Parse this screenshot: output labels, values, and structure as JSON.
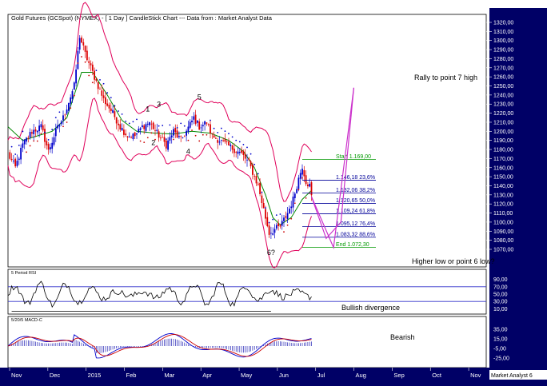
{
  "chart_data": {
    "type": "candlestick",
    "title": "Gold Futures (GCSpot) (NYMEX) - [ 1 Day ] CandleStick Chart --- Data from : Market Analyst Data",
    "watermark": "Market Analyst 6",
    "x_months": [
      "Nov",
      "Dec",
      "2015",
      "Feb",
      "Mar",
      "Apr",
      "May",
      "Jun",
      "Jul",
      "Aug",
      "Sep",
      "Oct",
      "Nov"
    ],
    "price_panel": {
      "y_min": 1070,
      "y_max": 1320,
      "tick_step": 10,
      "tick_labels": [
        "1320,00",
        "1310,00",
        "1300,00",
        "1290,00",
        "1280,00",
        "1270,00",
        "1260,00",
        "1250,00",
        "1240,00",
        "1230,00",
        "1220,00",
        "1210,00",
        "1200,00",
        "1190,00",
        "1180,00",
        "1170,00",
        "1160,00",
        "1150,00",
        "1140,00",
        "1130,00",
        "1120,00",
        "1110,00",
        "1100,00",
        "1090,00",
        "1080,00",
        "1070,00"
      ],
      "price_path": [
        [
          0,
          1175
        ],
        [
          4,
          1160
        ],
        [
          8,
          1185
        ],
        [
          13,
          1200
        ],
        [
          18,
          1205
        ],
        [
          22,
          1178
        ],
        [
          26,
          1200
        ],
        [
          30,
          1215
        ],
        [
          36,
          1250
        ],
        [
          39,
          1305
        ],
        [
          42,
          1285
        ],
        [
          47,
          1260
        ],
        [
          52,
          1235
        ],
        [
          57,
          1220
        ],
        [
          61,
          1205
        ],
        [
          65,
          1195
        ],
        [
          69,
          1195
        ],
        [
          73,
          1205
        ],
        [
          77,
          1210
        ],
        [
          81,
          1198
        ],
        [
          86,
          1185
        ],
        [
          90,
          1200
        ],
        [
          94,
          1190
        ],
        [
          97,
          1200
        ],
        [
          101,
          1215
        ],
        [
          104,
          1205
        ],
        [
          108,
          1210
        ],
        [
          111,
          1195
        ],
        [
          115,
          1190
        ],
        [
          119,
          1185
        ],
        [
          123,
          1180
        ],
        [
          127,
          1175
        ],
        [
          131,
          1165
        ],
        [
          136,
          1140
        ],
        [
          140,
          1105
        ],
        [
          142,
          1088
        ],
        [
          145,
          1092
        ],
        [
          148,
          1095
        ],
        [
          152,
          1110
        ],
        [
          155,
          1125
        ],
        [
          158,
          1148
        ],
        [
          160,
          1162
        ],
        [
          162,
          1145
        ],
        [
          164,
          1140
        ],
        [
          165,
          1128
        ]
      ],
      "moving_average_path": [
        [
          0,
          1205
        ],
        [
          8,
          1190
        ],
        [
          16,
          1195
        ],
        [
          24,
          1200
        ],
        [
          32,
          1215
        ],
        [
          40,
          1265
        ],
        [
          46,
          1265
        ],
        [
          54,
          1240
        ],
        [
          62,
          1212
        ],
        [
          70,
          1200
        ],
        [
          80,
          1198
        ],
        [
          90,
          1197
        ],
        [
          100,
          1200
        ],
        [
          110,
          1198
        ],
        [
          120,
          1190
        ],
        [
          128,
          1178
        ],
        [
          134,
          1160
        ],
        [
          140,
          1130
        ],
        [
          144,
          1105
        ],
        [
          148,
          1097
        ],
        [
          154,
          1105
        ],
        [
          160,
          1125
        ],
        [
          165,
          1135
        ]
      ],
      "wave_labels": [
        {
          "text": "1",
          "day": 76,
          "price": 1222
        },
        {
          "text": "2",
          "day": 79,
          "price": 1185
        },
        {
          "text": "3",
          "day": 82,
          "price": 1227
        },
        {
          "text": "4",
          "day": 98,
          "price": 1175
        },
        {
          "text": "5",
          "day": 104,
          "price": 1235
        },
        {
          "text": "6?",
          "day": 143,
          "price": 1064
        }
      ],
      "fib_levels": [
        {
          "label": "Start 1.169,00",
          "value": 1169.0,
          "color": "#009900"
        },
        {
          "label": "1.146,18 23,6%",
          "value": 1146.18,
          "color": "#000099"
        },
        {
          "label": "1.132,06 38,2%",
          "value": 1132.06,
          "color": "#000099"
        },
        {
          "label": "1.120,65 50,0%",
          "value": 1120.65,
          "color": "#000099"
        },
        {
          "label": "1.109,24 61,8%",
          "value": 1109.24,
          "color": "#000099"
        },
        {
          "label": "1.095,12 76,4%",
          "value": 1095.12,
          "color": "#000099"
        },
        {
          "label": "1.083,32 88,6%",
          "value": 1083.32,
          "color": "#000099"
        },
        {
          "label": "End 1.072,30",
          "value": 1072.3,
          "color": "#009900"
        }
      ],
      "projection_path": [
        [
          165,
          1128
        ],
        [
          177,
          1072
        ],
        [
          188,
          1248
        ]
      ],
      "projection_alt_path": [
        [
          165,
          1128
        ],
        [
          173,
          1082
        ],
        [
          181,
          1100
        ],
        [
          188,
          1248
        ]
      ],
      "annotations": [
        {
          "text": "Rally to point 7 high"
        },
        {
          "text": "Higher low or point 6 low?"
        }
      ]
    },
    "rsi_panel": {
      "name": "5 Period RSI",
      "y_min": 0,
      "y_max": 100,
      "tick_labels": [
        "90,00",
        "70,00",
        "50,00",
        "30,00",
        "10,00"
      ],
      "upper_band": 70,
      "lower_band": 30,
      "annotation": "Bullish divergence"
    },
    "macd_panel": {
      "name": "5/20/5 MACD-C",
      "y_min": -35,
      "y_max": 45,
      "tick_labels": [
        "35,00",
        "15,00",
        "-5,00",
        "-25,00"
      ],
      "annotation": "Bearish"
    }
  }
}
